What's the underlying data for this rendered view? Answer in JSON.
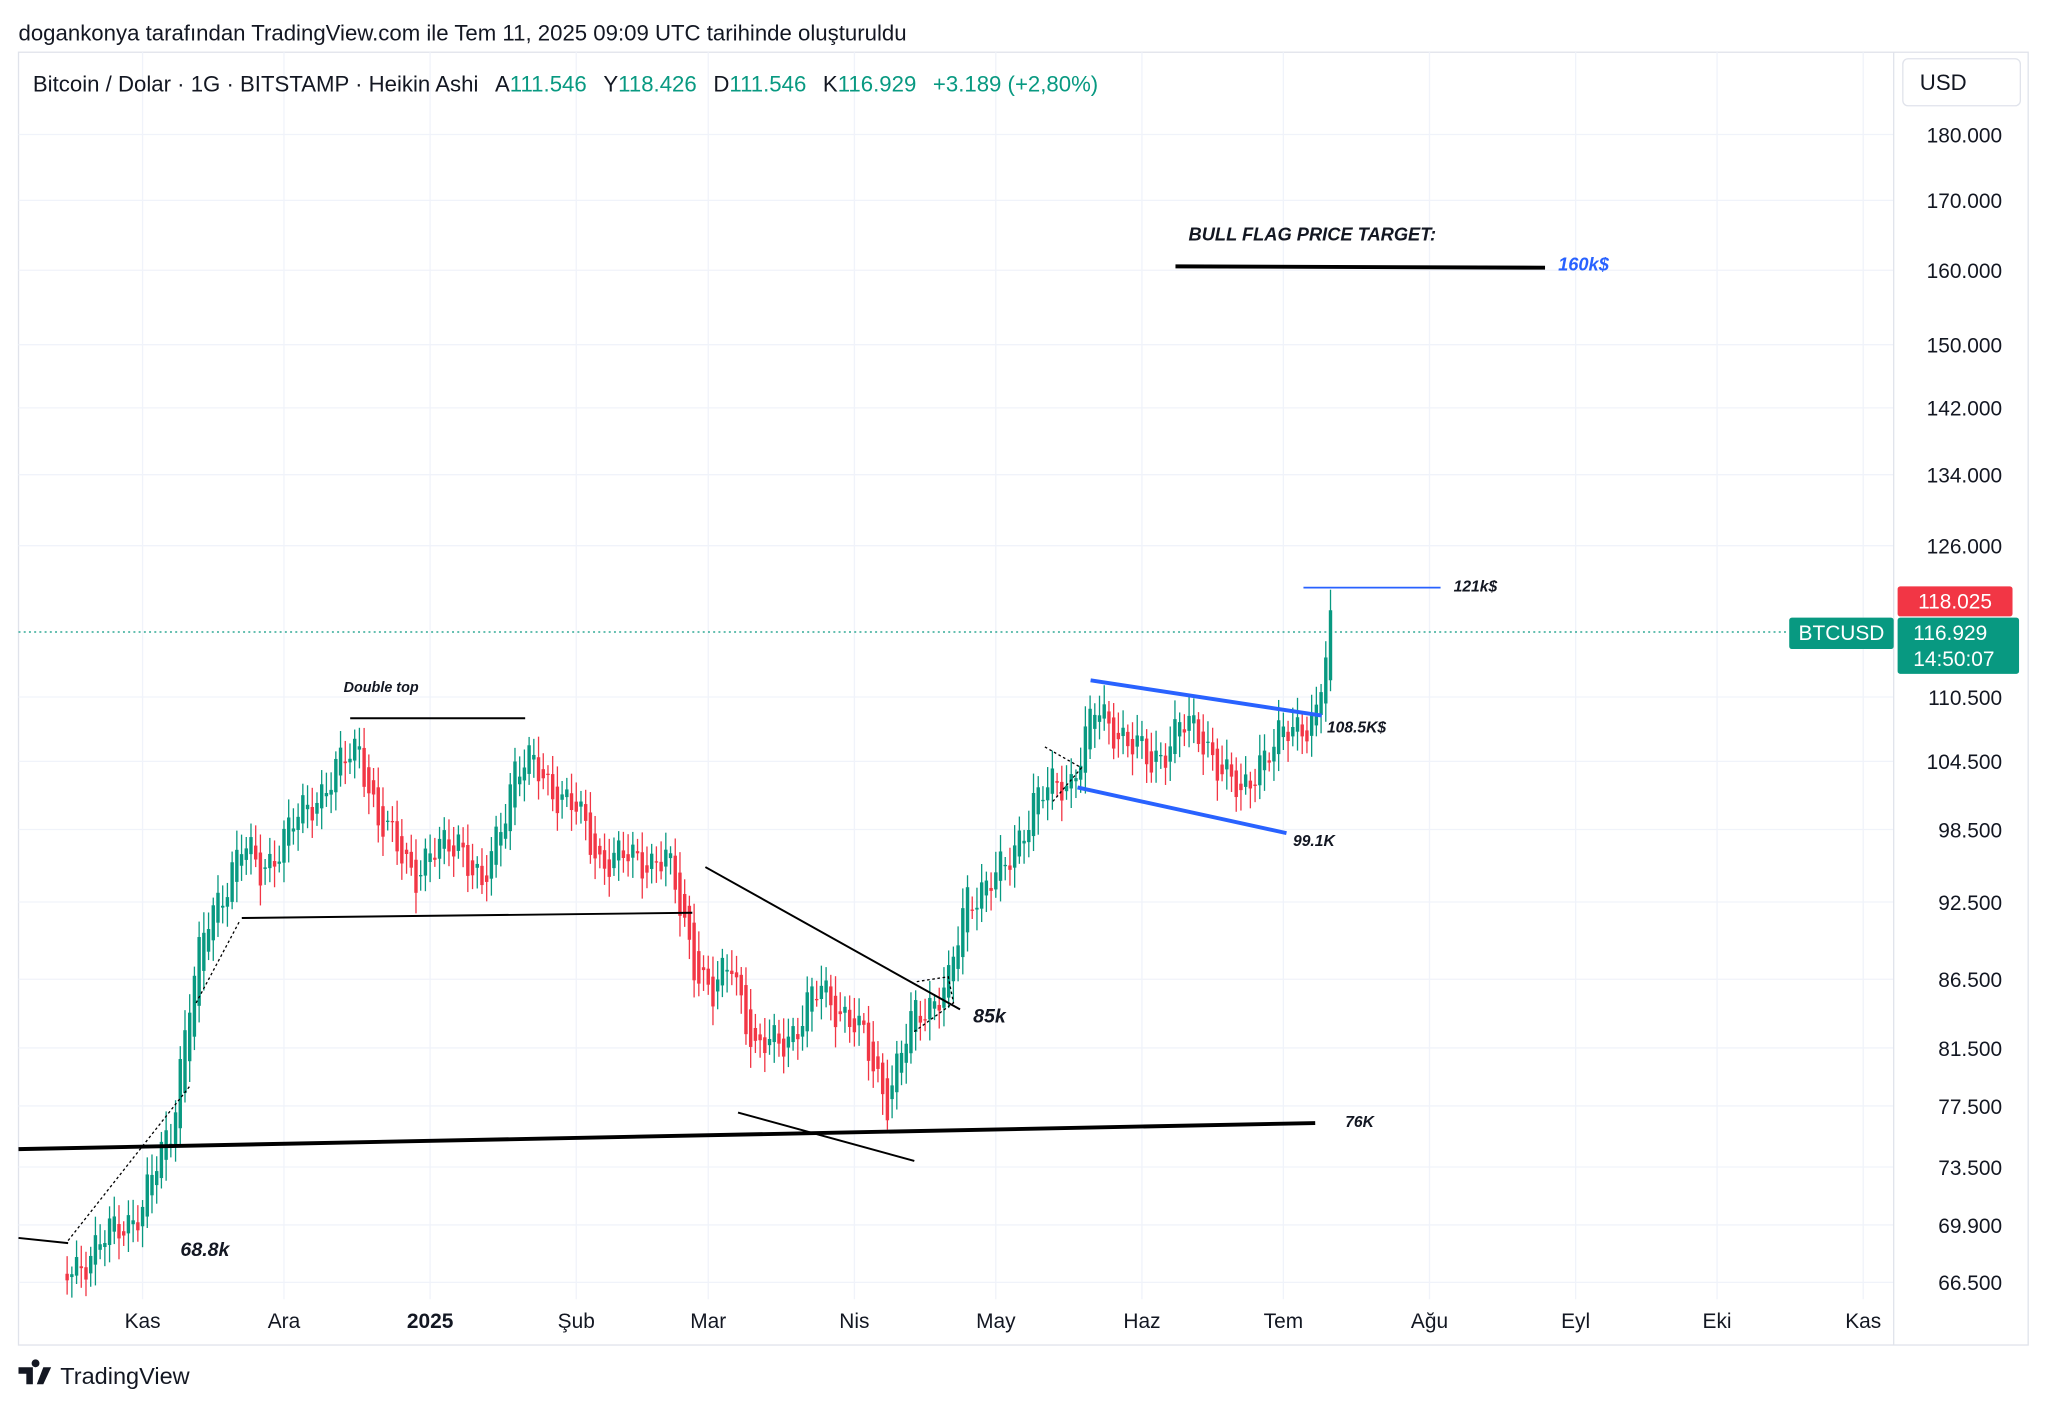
{
  "header": {
    "credit": "dogankonya tarafından TradingView.com ile Tem 11, 2025 09:09 UTC tarihinde oluşturuldu",
    "symbol_line": "Bitcoin / Dolar · 1G · BITSTAMP · Heikin Ashi",
    "open_label": "A",
    "open": "111.546",
    "high_label": "Y",
    "high": "118.426",
    "low_label": "D",
    "low": "111.546",
    "close_label": "K",
    "close": "116.929",
    "change": "+3.189 (+2,80%)"
  },
  "currency_button": "USD",
  "badges": {
    "high_price": "118.025",
    "symbol": "BTCUSD",
    "last_price": "116.929",
    "countdown": "14:50:07"
  },
  "footer": {
    "logo_text": "TradingView"
  },
  "colors": {
    "up": "#089981",
    "down": "#f23645",
    "blue": "#2962ff",
    "grid": "#f0f3fa"
  },
  "annotations": {
    "bull_flag": "BULL FLAG PRICE TARGET:",
    "target_160": "160k$",
    "level_121": "121k$",
    "double_top": "Double top",
    "level_1085": "108.5K$",
    "level_991": "99.1K",
    "level_85": "85k",
    "level_76": "76K",
    "level_688": "68.8k"
  },
  "chart_data": {
    "type": "candlestick",
    "style": "Heikin Ashi",
    "scale": "log",
    "ylim": [
      66500,
      180000
    ],
    "y_ticks": [
      180000,
      170000,
      160000,
      150000,
      142000,
      134000,
      126000,
      110500,
      104500,
      98500,
      92500,
      86500,
      81500,
      77500,
      73500,
      69900,
      66500
    ],
    "y_tick_labels": [
      "180.000",
      "170.000",
      "160.000",
      "150.000",
      "142.000",
      "134.000",
      "126.000",
      "110.500",
      "104.500",
      "98.500",
      "92.500",
      "86.500",
      "81.500",
      "77.500",
      "73.500",
      "69.900",
      "66.500"
    ],
    "x_ticks": [
      {
        "label": "Kas",
        "day": 0
      },
      {
        "label": "Ara",
        "day": 30
      },
      {
        "label": "2025",
        "day": 61,
        "bold": true
      },
      {
        "label": "Şub",
        "day": 92
      },
      {
        "label": "Mar",
        "day": 120
      },
      {
        "label": "Nis",
        "day": 151
      },
      {
        "label": "May",
        "day": 181
      },
      {
        "label": "Haz",
        "day": 212
      },
      {
        "label": "Tem",
        "day": 242
      },
      {
        "label": "Ağu",
        "day": 273
      },
      {
        "label": "Eyl",
        "day": 304
      },
      {
        "label": "Eki",
        "day": 334
      },
      {
        "label": "Kas",
        "day": 365
      }
    ],
    "x_unit": "days since 2024-11-01",
    "price_path": [
      [
        -16,
        67000
      ],
      [
        -8,
        69000
      ],
      [
        0,
        71000
      ],
      [
        6,
        76000
      ],
      [
        10,
        85000
      ],
      [
        14,
        91000
      ],
      [
        21,
        97000
      ],
      [
        25,
        95000
      ],
      [
        36,
        101000
      ],
      [
        46,
        106000
      ],
      [
        50,
        99000
      ],
      [
        58,
        95000
      ],
      [
        67,
        98000
      ],
      [
        72,
        93000
      ],
      [
        79,
        104000
      ],
      [
        83,
        104000
      ],
      [
        92,
        100000
      ],
      [
        97,
        96000
      ],
      [
        111,
        96000
      ],
      [
        117,
        88000
      ],
      [
        121,
        85000
      ],
      [
        125,
        88000
      ],
      [
        130,
        81000
      ],
      [
        139,
        83000
      ],
      [
        144,
        86000
      ],
      [
        153,
        82000
      ],
      [
        158,
        78000
      ],
      [
        164,
        84000
      ],
      [
        171,
        86000
      ],
      [
        175,
        93000
      ],
      [
        183,
        95000
      ],
      [
        189,
        101000
      ],
      [
        197,
        103000
      ],
      [
        202,
        109000
      ],
      [
        208,
        107000
      ],
      [
        214,
        104000
      ],
      [
        220,
        108000
      ],
      [
        226,
        106000
      ],
      [
        233,
        101000
      ],
      [
        237,
        105000
      ],
      [
        243,
        107000
      ],
      [
        249,
        109000
      ],
      [
        252,
        116929
      ]
    ],
    "last_price": 116929
  }
}
